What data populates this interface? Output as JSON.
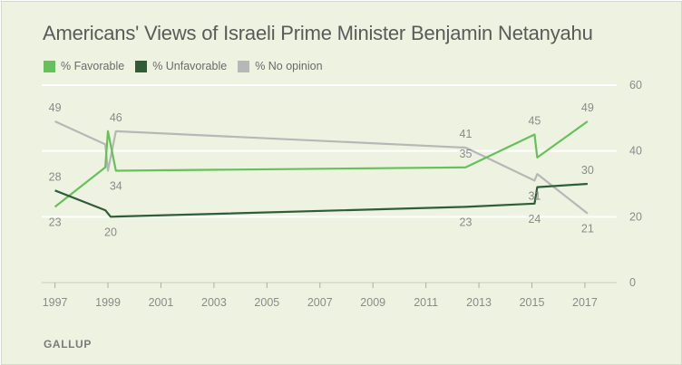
{
  "chart_data": {
    "type": "line",
    "title": "Americans' Views of Israeli Prime Minister Benjamin Netanyahu",
    "x_ticks": [
      "1997",
      "1999",
      "2001",
      "2003",
      "2005",
      "2007",
      "2009",
      "2011",
      "2013",
      "2015",
      "2017"
    ],
    "y_ticks": [
      "0",
      "20",
      "40",
      "60"
    ],
    "ylim": [
      0,
      60
    ],
    "xlim": [
      1996.5,
      2018.2
    ],
    "grid": true,
    "legend_position": "top-left",
    "series": [
      {
        "name": "% Favorable",
        "color": "#66c15a",
        "points": [
          {
            "x": 1997.0,
            "y": 23
          },
          {
            "x": 1998.9,
            "y": 35
          },
          {
            "x": 1999.0,
            "y": 46
          },
          {
            "x": 1999.3,
            "y": 34
          },
          {
            "x": 2012.5,
            "y": 35
          },
          {
            "x": 2015.1,
            "y": 45
          },
          {
            "x": 2015.2,
            "y": 38
          },
          {
            "x": 2017.1,
            "y": 49
          }
        ],
        "labels": [
          {
            "x": 1997.0,
            "y": 23,
            "text": "23",
            "pos": "below"
          },
          {
            "x": 1999.3,
            "y": 34,
            "text": "34",
            "pos": "below"
          },
          {
            "x": 2012.5,
            "y": 35,
            "text": "35",
            "pos": "above"
          },
          {
            "x": 2015.1,
            "y": 45,
            "text": "45",
            "pos": "above"
          },
          {
            "x": 2017.1,
            "y": 49,
            "text": "49",
            "pos": "above"
          }
        ]
      },
      {
        "name": "% Unfavorable",
        "color": "#2f5d38",
        "points": [
          {
            "x": 1997.0,
            "y": 28
          },
          {
            "x": 1998.9,
            "y": 22
          },
          {
            "x": 1999.1,
            "y": 20
          },
          {
            "x": 2012.5,
            "y": 23
          },
          {
            "x": 2015.1,
            "y": 24
          },
          {
            "x": 2015.2,
            "y": 29
          },
          {
            "x": 2017.1,
            "y": 30
          }
        ],
        "labels": [
          {
            "x": 1997.0,
            "y": 28,
            "text": "28",
            "pos": "above"
          },
          {
            "x": 1999.1,
            "y": 20,
            "text": "20",
            "pos": "below"
          },
          {
            "x": 2012.5,
            "y": 23,
            "text": "23",
            "pos": "below"
          },
          {
            "x": 2015.1,
            "y": 24,
            "text": "24",
            "pos": "below"
          },
          {
            "x": 2017.1,
            "y": 30,
            "text": "30",
            "pos": "above"
          }
        ]
      },
      {
        "name": "% No opinion",
        "color": "#b7b7b7",
        "points": [
          {
            "x": 1997.0,
            "y": 49
          },
          {
            "x": 1998.9,
            "y": 42
          },
          {
            "x": 1999.0,
            "y": 34
          },
          {
            "x": 1999.3,
            "y": 46
          },
          {
            "x": 2012.5,
            "y": 41
          },
          {
            "x": 2015.1,
            "y": 31
          },
          {
            "x": 2015.2,
            "y": 33
          },
          {
            "x": 2017.1,
            "y": 21
          }
        ],
        "labels": [
          {
            "x": 1997.0,
            "y": 49,
            "text": "49",
            "pos": "above"
          },
          {
            "x": 1999.3,
            "y": 46,
            "text": "46",
            "pos": "above"
          },
          {
            "x": 2012.5,
            "y": 41,
            "text": "41",
            "pos": "above"
          },
          {
            "x": 2015.1,
            "y": 31,
            "text": "31",
            "pos": "below"
          },
          {
            "x": 2017.1,
            "y": 21,
            "text": "21",
            "pos": "below"
          }
        ]
      }
    ]
  },
  "source": "GALLUP"
}
